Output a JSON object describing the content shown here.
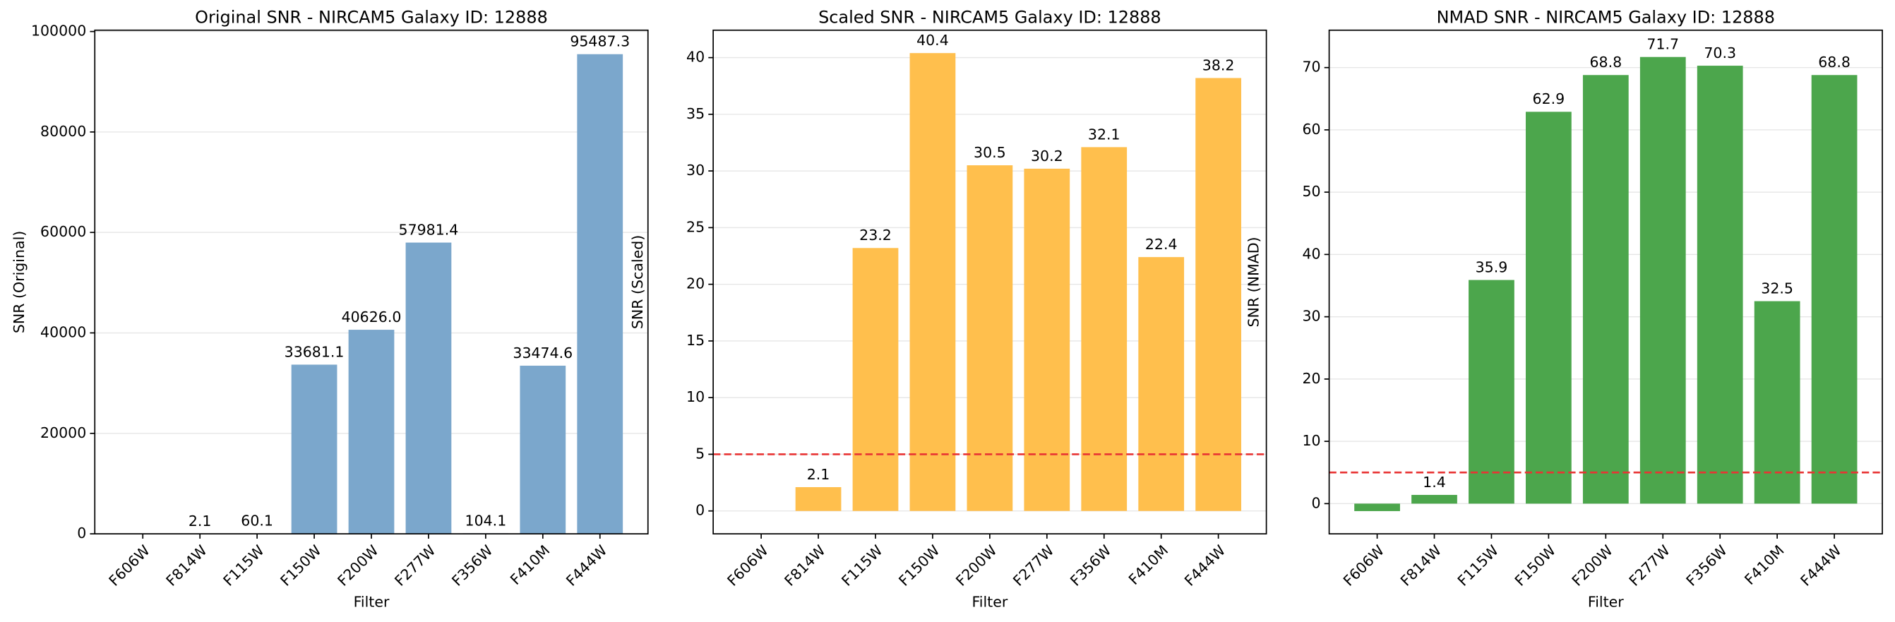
{
  "chart_data": [
    {
      "type": "bar",
      "title": "Original SNR - NIRCAM5 Galaxy ID: 12888",
      "xlabel": "Filter",
      "ylabel": "SNR (Original)",
      "categories": [
        "F606W",
        "F814W",
        "F115W",
        "F150W",
        "F200W",
        "F277W",
        "F356W",
        "F410M",
        "F444W"
      ],
      "values": [
        null,
        2.1,
        60.1,
        33681.1,
        40626.0,
        57981.4,
        104.1,
        33474.6,
        95487.3
      ],
      "value_labels": [
        null,
        "2.1",
        "60.1",
        "33681.1",
        "40626.0",
        "57981.4",
        "104.1",
        "33474.6",
        "95487.3"
      ],
      "color": "#7ba7cc",
      "ylim": [
        0,
        100261
      ],
      "yticks": [
        0,
        20000,
        40000,
        60000,
        80000,
        100000
      ],
      "grid": true
    },
    {
      "type": "bar",
      "title": "Scaled SNR - NIRCAM5 Galaxy ID: 12888",
      "xlabel": "Filter",
      "ylabel": "SNR (Scaled)",
      "categories": [
        "F606W",
        "F814W",
        "F115W",
        "F150W",
        "F200W",
        "F277W",
        "F356W",
        "F410M",
        "F444W"
      ],
      "values": [
        null,
        2.1,
        23.2,
        40.4,
        30.5,
        30.2,
        32.1,
        22.4,
        38.2
      ],
      "value_labels": [
        null,
        "2.1",
        "23.2",
        "40.4",
        "30.5",
        "30.2",
        "32.1",
        "22.4",
        "38.2"
      ],
      "color": "#ffbf4d",
      "ylim": [
        -2.02,
        42.42
      ],
      "yticks": [
        0,
        5,
        10,
        15,
        20,
        25,
        30,
        35,
        40
      ],
      "grid": true,
      "threshold_line": 5,
      "threshold_color": "#e83333"
    },
    {
      "type": "bar",
      "title": "NMAD SNR - NIRCAM5 Galaxy ID: 12888",
      "xlabel": "Filter",
      "ylabel": "SNR (NMAD)",
      "categories": [
        "F606W",
        "F814W",
        "F115W",
        "F150W",
        "F200W",
        "F277W",
        "F356W",
        "F410M",
        "F444W"
      ],
      "values": [
        -1.2,
        1.4,
        35.9,
        62.9,
        68.8,
        71.7,
        70.3,
        32.5,
        68.8
      ],
      "value_labels": [
        null,
        "1.4",
        "35.9",
        "62.9",
        "68.8",
        "71.7",
        "70.3",
        "32.5",
        "68.8"
      ],
      "color": "#4ca64c",
      "ylim": [
        -4.85,
        76.0
      ],
      "yticks": [
        0,
        10,
        20,
        30,
        40,
        50,
        60,
        70
      ],
      "grid": true,
      "threshold_line": 5,
      "threshold_color": "#e83333"
    }
  ]
}
